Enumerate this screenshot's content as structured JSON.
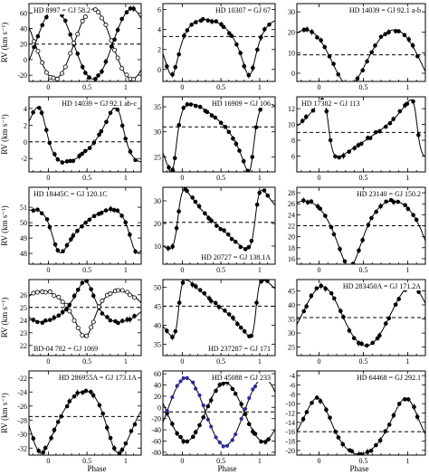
{
  "figure": {
    "xlabel": "Phase",
    "ylabel": "RV (km s⁻¹)",
    "x_ticks": [
      0,
      0.5,
      1
    ],
    "x_range": [
      -0.25,
      1.2
    ]
  },
  "chart_data": [
    {
      "type": "scatter",
      "title": "HD 8997 = GJ 58.2",
      "label_pos": "top-left",
      "y_ticks": [
        -20,
        0,
        20,
        40,
        60
      ],
      "ylim": [
        -28,
        72
      ],
      "gamma": 20,
      "k": 45,
      "phase0": 0.08,
      "e": 0,
      "omega": 0,
      "secondary": true,
      "k2": 45
    },
    {
      "type": "scatter",
      "title": "HD 10307 = GJ 67",
      "label_pos": "top-right",
      "y_ticks": [
        0,
        2,
        4,
        6
      ],
      "ylim": [
        -1.2,
        6.6
      ],
      "gamma": 3.3,
      "k": 2.8,
      "phase0": 0.88,
      "e": 0.4,
      "omega": 3.4
    },
    {
      "type": "scatter",
      "title": "HD 14039 = GJ 92.1 a-b",
      "label_pos": "top-right",
      "y_ticks": [
        0,
        10,
        20,
        30
      ],
      "ylim": [
        -4,
        34
      ],
      "gamma": 9,
      "k": 13.5,
      "phase0": 0.32,
      "e": 0.1,
      "omega": 3.0
    },
    {
      "type": "scatter",
      "title": "HD 14039 = GJ 92.1 ab-c",
      "label_pos": "top-right",
      "y_ticks": [
        -2,
        0,
        2,
        4
      ],
      "ylim": [
        -3.6,
        5.4
      ],
      "gamma": 0,
      "k": 3.3,
      "phase0": 0.92,
      "e": 0.35,
      "omega": 0.7
    },
    {
      "type": "scatter",
      "title": "HD 16909 = GJ 106",
      "label_pos": "top-right",
      "y_ticks": [
        25,
        30,
        35
      ],
      "ylim": [
        22,
        37
      ],
      "gamma": 31,
      "k": 6.8,
      "phase0": 0.9,
      "e": 0.5,
      "omega": 4.0
    },
    {
      "type": "scatter",
      "title": "HD 17382 = GJ 113",
      "label_pos": "top-left",
      "y_ticks": [
        6,
        8,
        10,
        12
      ],
      "ylim": [
        4,
        13.5
      ],
      "gamma": 9,
      "k": 3.6,
      "phase0": 0.1,
      "e": 0.55,
      "omega": 1.3
    },
    {
      "type": "scatter",
      "title": "HD 18445C = GJ 120.1C",
      "label_pos": "top-left",
      "y_ticks": [
        48,
        49,
        50,
        51
      ],
      "ylim": [
        47.3,
        52.3
      ],
      "gamma": 49.8,
      "k": 1.4,
      "phase0": 0.1,
      "e": 0.35,
      "omega": 2.4
    },
    {
      "type": "scatter",
      "title": "HD 20727 = GJ 138.1A",
      "label_pos": "bottom-right",
      "y_ticks": [
        10,
        20,
        30
      ],
      "ylim": [
        2,
        36
      ],
      "gamma": 20.5,
      "k": 13,
      "phase0": 0.95,
      "e": 0.5,
      "omega": 4.9
    },
    {
      "type": "scatter",
      "title": "HD 23140 = GJ 150.2",
      "label_pos": "top-right",
      "y_ticks": [
        16,
        18,
        20,
        22,
        24,
        26,
        28
      ],
      "ylim": [
        15,
        29
      ],
      "gamma": 22,
      "k": 6,
      "phase0": 0.35,
      "e": 0.25,
      "omega": 3.2
    },
    {
      "type": "scatter",
      "title": "BD-04 782 = GJ 1069",
      "label_pos": "bottom-left",
      "y_ticks": [
        22,
        23,
        24,
        25,
        26
      ],
      "ylim": [
        21.2,
        27.2
      ],
      "gamma": 25,
      "k": 1.6,
      "phase0": 0.5,
      "e": 0.3,
      "omega": 0.3,
      "secondary": true,
      "k2": 1.8
    },
    {
      "type": "scatter",
      "title": "HD 237287 = GJ 171",
      "label_pos": "bottom-right",
      "y_ticks": [
        35,
        40,
        45,
        50
      ],
      "ylim": [
        32,
        52
      ],
      "gamma": 45,
      "k": 7.5,
      "phase0": 0.95,
      "e": 0.55,
      "omega": 4.6
    },
    {
      "type": "scatter",
      "title": "HD 283450A = GJ 171.2A",
      "label_pos": "top-right",
      "y_ticks": [
        25,
        30,
        35,
        40,
        45
      ],
      "ylim": [
        22,
        49
      ],
      "gamma": 35.5,
      "k": 10.5,
      "phase0": 0.08,
      "e": 0.05,
      "omega": 0.3
    },
    {
      "type": "scatter",
      "title": "HD 286955A = GJ 173.1A",
      "label_pos": "top-right",
      "y_ticks": [
        -32,
        -30,
        -28,
        -26,
        -24,
        -22
      ],
      "ylim": [
        -33,
        -21
      ],
      "gamma": -27.5,
      "k": 4.4,
      "phase0": 0.85,
      "e": 0.2,
      "omega": 2.6
    },
    {
      "type": "scatter",
      "title": "HD 45088 = GJ 233",
      "label_pos": "top-right",
      "y_ticks": [
        -80,
        -60,
        -40,
        -20,
        0,
        20,
        40,
        60
      ],
      "ylim": [
        -85,
        65
      ],
      "gamma": -8,
      "k": 52,
      "phase0": 0.55,
      "e": 0,
      "omega": 0,
      "secondary": true,
      "k2": 60
    },
    {
      "type": "scatter",
      "title": "HD 64468 = GJ 292.1",
      "label_pos": "top-right",
      "y_ticks": [
        -20,
        -18,
        -16,
        -14,
        -12,
        -10,
        -8,
        -6,
        -4
      ],
      "ylim": [
        -21,
        -3
      ],
      "gamma": -16,
      "k": 6,
      "phase0": 0.0,
      "e": 0.2,
      "omega": 0.2
    }
  ]
}
